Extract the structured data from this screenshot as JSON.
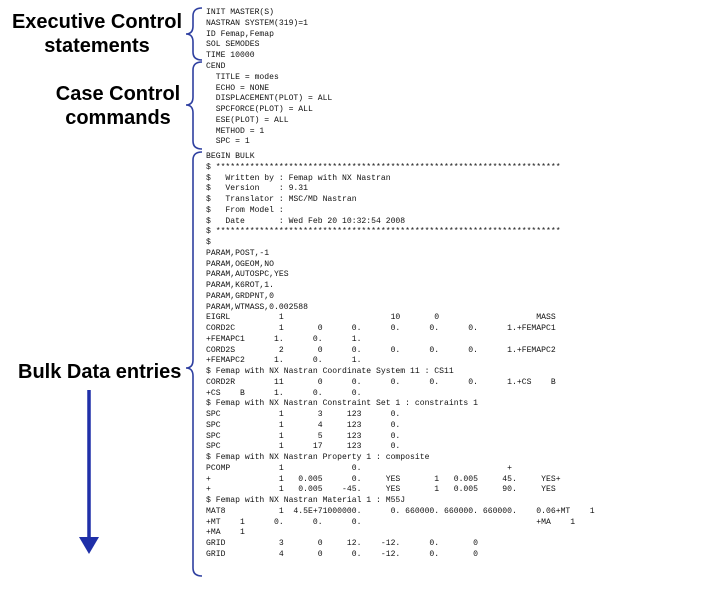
{
  "labels": {
    "executive": "Executive Control\nstatements",
    "case": "Case Control\ncommands",
    "bulk": "Bulk Data entries"
  },
  "colors": {
    "bracket": "#2e3fa0",
    "arrow": "#1f2fa8",
    "text": "#111111"
  },
  "executive_lines": [
    "INIT MASTER(S)",
    "NASTRAN SYSTEM(319)=1",
    "ID Femap,Femap",
    "SOL SEMODES",
    "TIME 10000"
  ],
  "case_lines": [
    "CEND",
    "  TITLE = modes",
    "  ECHO = NONE",
    "  DISPLACEMENT(PLOT) = ALL",
    "  SPCFORCE(PLOT) = ALL",
    "  ESE(PLOT) = ALL",
    "  METHOD = 1",
    "  SPC = 1"
  ],
  "bulk_lines": [
    "BEGIN BULK",
    "$ ***********************************************************************",
    "$   Written by : Femap with NX Nastran",
    "$   Version    : 9.31",
    "$   Translator : MSC/MD Nastran",
    "$   From Model :",
    "$   Date       : Wed Feb 20 10:32:54 2008",
    "$ ***********************************************************************",
    "$",
    "PARAM,POST,-1",
    "PARAM,OGEOM,NO",
    "PARAM,AUTOSPC,YES",
    "PARAM,K6ROT,1.",
    "PARAM,GRDPNT,0",
    "PARAM,WTMASS,0.002588",
    "EIGRL          1                      10       0                    MASS",
    "CORD2C         1       0      0.      0.      0.      0.      1.+FEMAPC1",
    "+FEMAPC1      1.      0.      1.",
    "CORD2S         2       0      0.      0.      0.      0.      1.+FEMAPC2",
    "+FEMAPC2      1.      0.      1.",
    "$ Femap with NX Nastran Coordinate System 11 : CS11",
    "CORD2R        11       0      0.      0.      0.      0.      1.+CS    B",
    "+CS    B      1.      0.      0.",
    "$ Femap with NX Nastran Constraint Set 1 : constraints 1",
    "SPC            1       3     123      0.",
    "SPC            1       4     123      0.",
    "SPC            1       5     123      0.",
    "SPC            1      17     123      0.",
    "$ Femap with NX Nastran Property 1 : composite",
    "PCOMP          1              0.                              +",
    "+              1   0.005      0.     YES       1   0.005     45.     YES+",
    "+              1   0.005    -45.     YES       1   0.005     90.     YES",
    "$ Femap with NX Nastran Material 1 : M55J",
    "MAT8           1  4.5E+71000000.      0. 660000. 660000. 660000.    0.06+MT    1",
    "+MT    1      0.      0.      0.                                    +MA    1",
    "+MA    1",
    "GRID           3       0     12.    -12.      0.       0",
    "GRID           4       0      0.    -12.      0.       0"
  ]
}
